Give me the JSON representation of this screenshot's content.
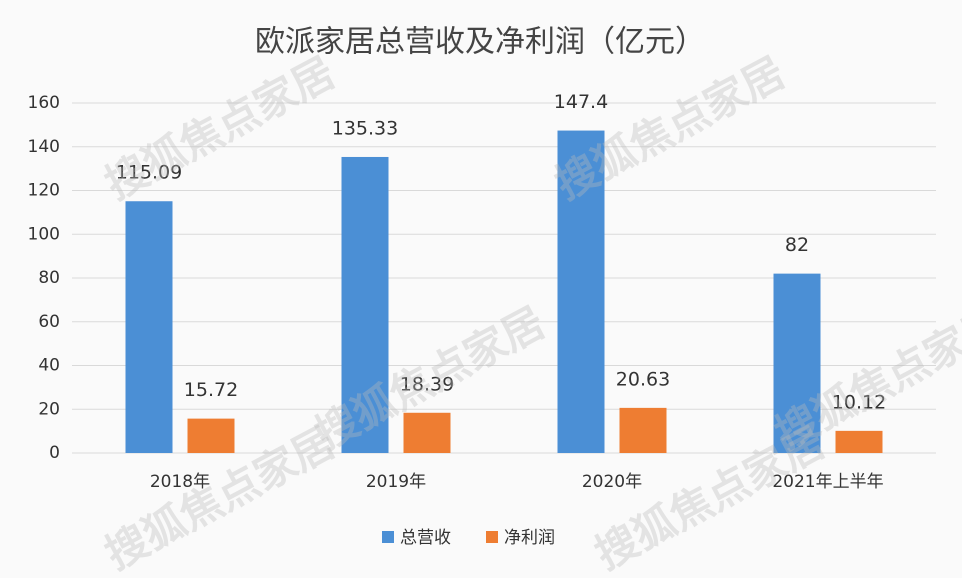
{
  "chart_data": {
    "type": "bar",
    "title": "欧派家居总营收及净利润（亿元）",
    "categories": [
      "2018年",
      "2019年",
      "2020年",
      "2021年上半年"
    ],
    "series": [
      {
        "name": "总营收",
        "color": "#4b8fd5",
        "values": [
          115.09,
          135.33,
          147.4,
          82
        ]
      },
      {
        "name": "净利润",
        "color": "#ee7d32",
        "values": [
          15.72,
          18.39,
          20.63,
          10.12
        ]
      }
    ],
    "ylim": [
      0,
      160
    ],
    "yticks": [
      0,
      20,
      40,
      60,
      80,
      100,
      120,
      140,
      160
    ],
    "grid": true,
    "legend": "bottom",
    "watermark": "搜狐焦点家居"
  }
}
